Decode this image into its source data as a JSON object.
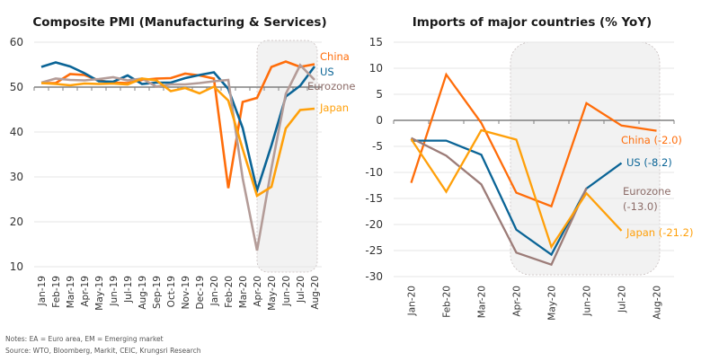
{
  "chart_data": [
    {
      "type": "line",
      "title": "Composite PMI (Manufacturing & Services)",
      "xlabel": "",
      "ylabel": "",
      "ylim": [
        10,
        60
      ],
      "yticks": [
        "60",
        "50",
        "40",
        "30",
        "20",
        "10"
      ],
      "ytick_values": [
        60,
        50,
        40,
        30,
        20,
        10
      ],
      "reference_line": 50,
      "categories": [
        "Jan-19",
        "Feb-19",
        "Mar-19",
        "Apr-19",
        "May-19",
        "Jun-19",
        "Jul-19",
        "Aug-19",
        "Sep-19",
        "Oct-19",
        "Nov-19",
        "Dec-19",
        "Jan-20",
        "Feb-20",
        "Mar-20",
        "Apr-20",
        "May-20",
        "Jun-20",
        "Jul-20",
        "Aug-20"
      ],
      "highlight_range": [
        "Apr-20",
        "Aug-20"
      ],
      "grid": true,
      "series": [
        {
          "name": "China",
          "label": "China",
          "color": "#ff6d0a",
          "values": [
            50.9,
            50.9,
            52.9,
            52.7,
            51.5,
            51.0,
            50.9,
            51.6,
            51.9,
            52.0,
            53.0,
            52.6,
            51.9,
            27.5,
            46.7,
            47.6,
            54.5,
            55.7,
            54.5,
            55.1
          ]
        },
        {
          "name": "US",
          "label": "US",
          "color": "#0a6496",
          "values": [
            54.5,
            55.5,
            54.6,
            53.1,
            51.3,
            51.2,
            52.6,
            50.7,
            51.0,
            51.0,
            52.0,
            52.7,
            53.3,
            49.6,
            40.9,
            27.0,
            37.0,
            47.9,
            50.3,
            54.6
          ]
        },
        {
          "name": "Eurozone",
          "label": "Eurozone",
          "color": "#b49c98",
          "values": [
            51.0,
            51.9,
            51.6,
            51.5,
            51.8,
            52.2,
            51.5,
            51.9,
            50.1,
            50.6,
            50.6,
            50.9,
            51.3,
            51.6,
            29.7,
            13.6,
            31.9,
            48.5,
            54.9,
            51.6
          ]
        },
        {
          "name": "Japan",
          "label": "Japan",
          "color": "#ffa00a",
          "values": [
            50.9,
            50.7,
            50.4,
            50.8,
            50.7,
            50.8,
            50.6,
            51.9,
            51.5,
            49.1,
            49.8,
            48.6,
            50.1,
            47.0,
            36.2,
            25.8,
            27.8,
            40.8,
            44.9,
            45.2
          ]
        }
      ]
    },
    {
      "type": "line",
      "title": "Imports of major countries (% YoY)",
      "xlabel": "",
      "ylabel": "",
      "ylim": [
        -30,
        15
      ],
      "yticks": [
        "15",
        "10",
        "5",
        "0",
        "-5",
        "-10",
        "-15",
        "-20",
        "-25",
        "-30"
      ],
      "ytick_values": [
        15,
        10,
        5,
        0,
        -5,
        -10,
        -15,
        -20,
        -25,
        -30
      ],
      "reference_line": 0,
      "categories": [
        "Jan-20",
        "Feb-20",
        "Mar-20",
        "Apr-20",
        "May-20",
        "Jun-20",
        "Jul-20",
        "Aug-20"
      ],
      "highlight_range": [
        "Apr-20",
        "Aug-20"
      ],
      "grid": true,
      "series": [
        {
          "name": "China",
          "label": "China (-2.0)",
          "color": "#ff6d0a",
          "values": [
            -12.0,
            8.8,
            -0.5,
            -13.9,
            -16.5,
            3.3,
            -1.0,
            -2.0
          ]
        },
        {
          "name": "US",
          "label": "US (-8.2)",
          "color": "#0a6496",
          "values": [
            -3.9,
            -3.9,
            -6.6,
            -21.0,
            -25.8,
            -13.1,
            -8.2,
            null
          ]
        },
        {
          "name": "Eurozone",
          "label_line1": "Eurozone",
          "label_line2": "(-13.0)",
          "color": "#9c7c78",
          "values": [
            -3.4,
            -6.8,
            -12.3,
            -25.4,
            -27.7,
            -13.0,
            null,
            null
          ]
        },
        {
          "name": "Japan",
          "label": "Japan (-21.2)",
          "color": "#ffa00a",
          "values": [
            -3.6,
            -13.7,
            -1.9,
            -3.7,
            -24.3,
            -14.0,
            -21.2,
            null
          ]
        }
      ]
    }
  ],
  "notes": {
    "line1": "Notes: EA = Euro area, EM = Emerging market",
    "line2": "Source: WTO, Bloomberg, Markit, CEIC, Krungsri Research"
  }
}
